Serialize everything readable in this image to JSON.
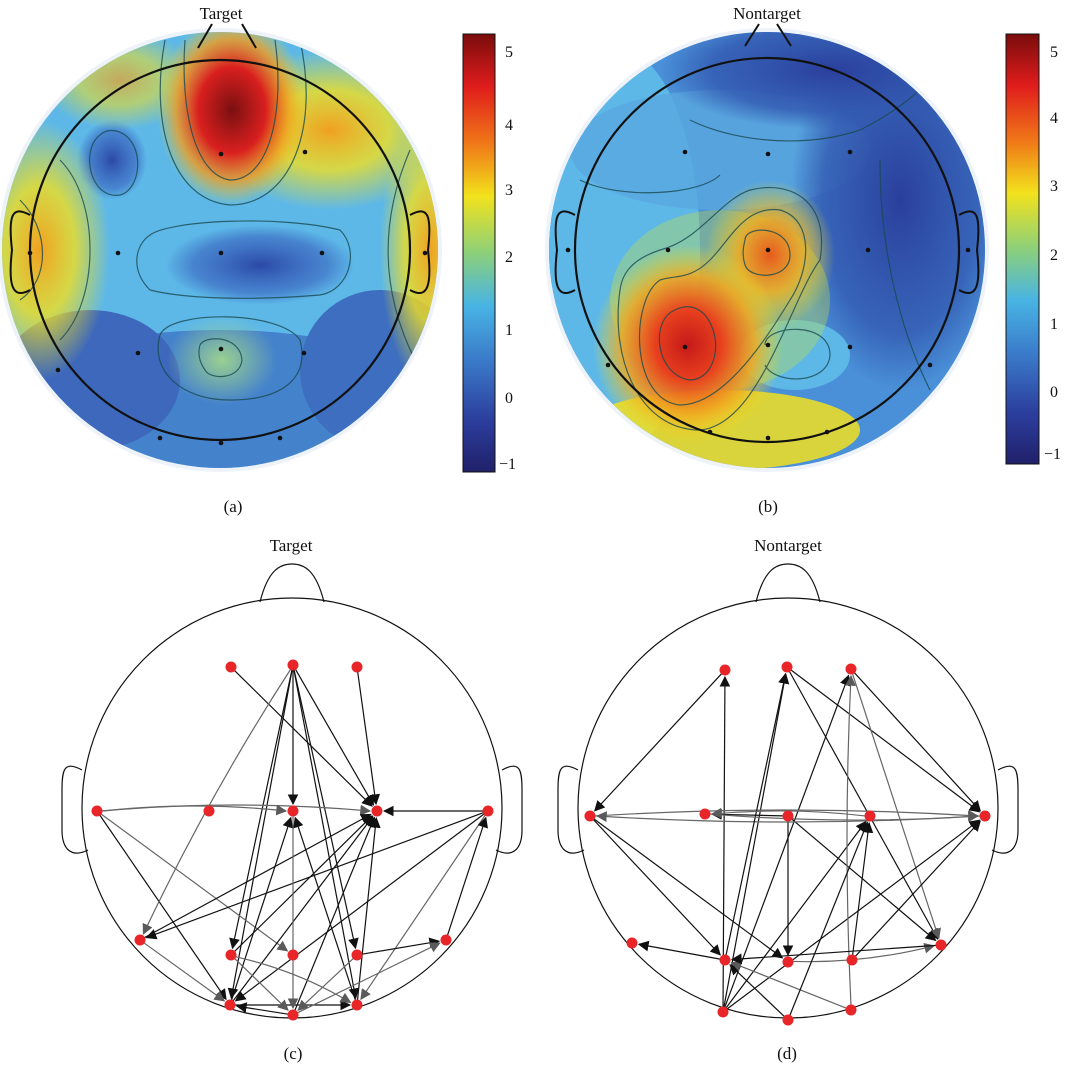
{
  "panels": {
    "a": {
      "title": "Target",
      "caption": "(a)"
    },
    "b": {
      "title": "Nontarget",
      "caption": "(b)"
    },
    "c": {
      "title": "Target",
      "caption": "(c)"
    },
    "d": {
      "title": "Nontarget",
      "caption": "(d)"
    }
  },
  "colorbar": {
    "ticks": [
      "5",
      "4",
      "3",
      "2",
      "1",
      "0",
      "−1"
    ]
  },
  "colors": {
    "node": "#e8262a",
    "arrow_dark": "#111111",
    "arrow_gray": "#666666"
  }
}
